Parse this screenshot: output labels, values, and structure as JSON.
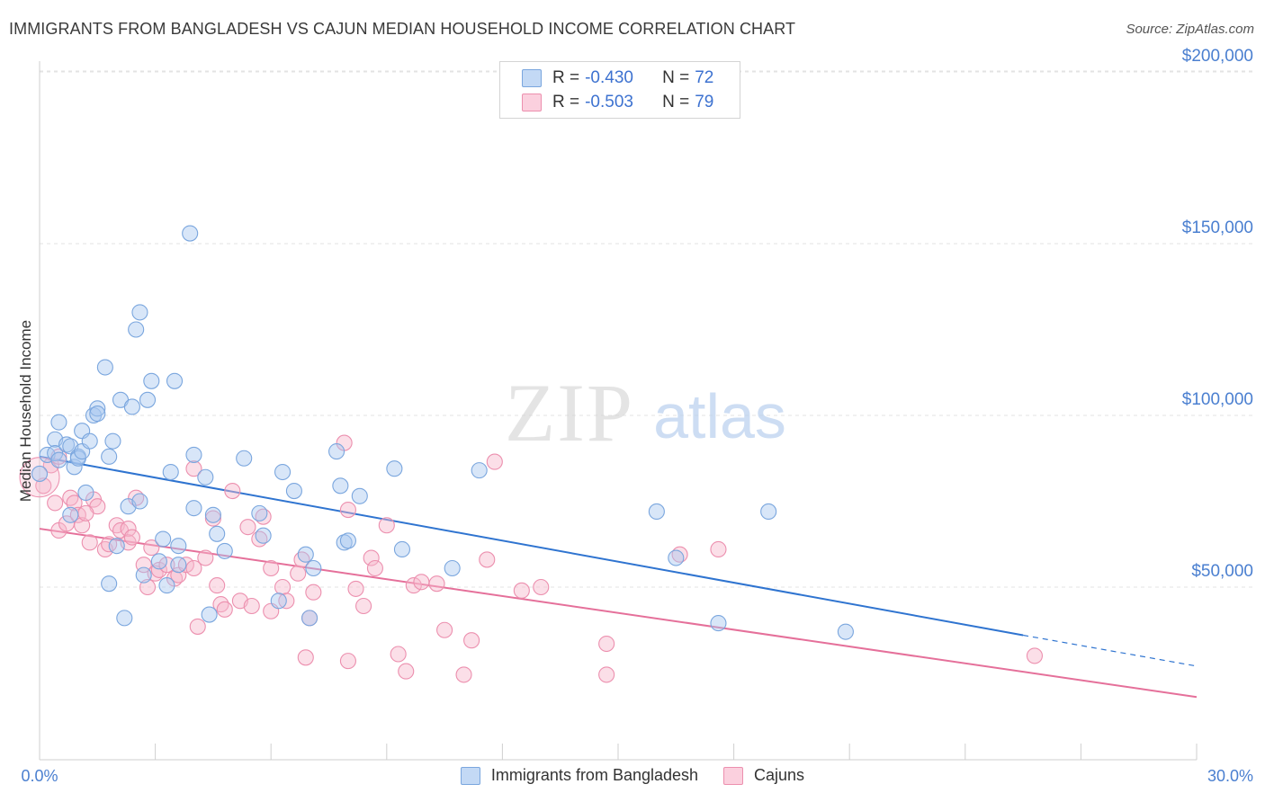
{
  "title": "IMMIGRANTS FROM BANGLADESH VS CAJUN MEDIAN HOUSEHOLD INCOME CORRELATION CHART",
  "source": "Source: ZipAtlas.com",
  "watermark": {
    "zip": "ZIP",
    "atlas": "atlas"
  },
  "colors": {
    "blue_fill": "#a9c8ef",
    "blue_stroke": "#7aa6de",
    "blue_line": "#2f74d0",
    "pink_fill": "#f6b9cd",
    "pink_stroke": "#ec8fae",
    "pink_line": "#e5709a",
    "accent_text": "#3d72d0",
    "grid": "#e3e3e3"
  },
  "legend": {
    "rows": [
      {
        "r_label": "R =",
        "r_value": "-0.430",
        "n_label": "N =",
        "n_value": "72"
      },
      {
        "r_label": "R =",
        "r_value": "-0.503",
        "n_label": "N =",
        "n_value": "79"
      }
    ]
  },
  "bottom_legend": [
    "Immigrants from Bangladesh",
    "Cajuns"
  ],
  "chart_data": {
    "type": "scatter",
    "title": "IMMIGRANTS FROM BANGLADESH VS CAJUN MEDIAN HOUSEHOLD INCOME CORRELATION CHART",
    "xlabel": "",
    "ylabel": "Median Household Income",
    "xlim": [
      0,
      30
    ],
    "ylim": [
      5000,
      210000
    ],
    "x_tick_labels": [
      "0.0%",
      "30.0%"
    ],
    "y_ticks": [
      50000,
      100000,
      150000,
      200000
    ],
    "y_tick_labels": [
      "$50,000",
      "$100,000",
      "$150,000",
      "$200,000"
    ],
    "grid": true,
    "series": [
      {
        "name": "Immigrants from Bangladesh",
        "r": -0.43,
        "n": 72,
        "trend": {
          "x0": 0.0,
          "y0": 88000,
          "x1": 25.5,
          "y1": 36000,
          "dash_x1": 30.0,
          "dash_y1": 27000
        },
        "points": [
          [
            0.0,
            83000
          ],
          [
            0.2,
            88500
          ],
          [
            0.4,
            93000
          ],
          [
            0.4,
            89000
          ],
          [
            0.5,
            98000
          ],
          [
            0.5,
            87000
          ],
          [
            0.7,
            91500
          ],
          [
            0.8,
            71000
          ],
          [
            0.8,
            91000
          ],
          [
            0.9,
            85000
          ],
          [
            1.0,
            88000
          ],
          [
            1.0,
            87500
          ],
          [
            1.1,
            89500
          ],
          [
            1.1,
            95500
          ],
          [
            1.2,
            77500
          ],
          [
            1.3,
            92500
          ],
          [
            1.4,
            100000
          ],
          [
            1.5,
            102000
          ],
          [
            1.5,
            100500
          ],
          [
            1.7,
            114000
          ],
          [
            1.8,
            88000
          ],
          [
            1.8,
            51000
          ],
          [
            1.9,
            92500
          ],
          [
            2.0,
            62000
          ],
          [
            2.1,
            104500
          ],
          [
            2.2,
            41000
          ],
          [
            2.3,
            73500
          ],
          [
            2.4,
            102500
          ],
          [
            2.5,
            125000
          ],
          [
            2.6,
            75000
          ],
          [
            2.6,
            130000
          ],
          [
            2.7,
            53500
          ],
          [
            2.8,
            104500
          ],
          [
            2.9,
            110000
          ],
          [
            3.1,
            57500
          ],
          [
            3.2,
            64000
          ],
          [
            3.3,
            50500
          ],
          [
            3.4,
            83500
          ],
          [
            3.5,
            110000
          ],
          [
            3.6,
            62000
          ],
          [
            3.9,
            153000
          ],
          [
            4.0,
            88500
          ],
          [
            4.0,
            73000
          ],
          [
            4.3,
            82000
          ],
          [
            4.4,
            42000
          ],
          [
            4.5,
            71000
          ],
          [
            4.6,
            65500
          ],
          [
            4.8,
            60500
          ],
          [
            5.3,
            87500
          ],
          [
            5.7,
            71500
          ],
          [
            5.8,
            65000
          ],
          [
            6.2,
            46000
          ],
          [
            6.3,
            83500
          ],
          [
            6.6,
            78000
          ],
          [
            6.9,
            59500
          ],
          [
            7.0,
            41000
          ],
          [
            7.1,
            55500
          ],
          [
            7.7,
            89500
          ],
          [
            7.8,
            79500
          ],
          [
            7.9,
            63000
          ],
          [
            8.0,
            63500
          ],
          [
            8.3,
            76500
          ],
          [
            9.2,
            84500
          ],
          [
            9.4,
            61000
          ],
          [
            10.7,
            55500
          ],
          [
            11.4,
            84000
          ],
          [
            16.0,
            72000
          ],
          [
            16.5,
            58500
          ],
          [
            17.6,
            39500
          ],
          [
            18.9,
            72000
          ],
          [
            20.9,
            37000
          ],
          [
            3.6,
            56500
          ]
        ]
      },
      {
        "name": "Cajuns",
        "r": -0.503,
        "n": 79,
        "trend": {
          "x0": 0.0,
          "y0": 67000,
          "x1": 30.0,
          "y1": 18000
        },
        "points": [
          [
            0.1,
            79500
          ],
          [
            0.3,
            85500
          ],
          [
            0.4,
            74500
          ],
          [
            0.5,
            66500
          ],
          [
            0.7,
            68500
          ],
          [
            0.8,
            76000
          ],
          [
            0.9,
            74500
          ],
          [
            1.0,
            71000
          ],
          [
            1.1,
            68000
          ],
          [
            1.3,
            63000
          ],
          [
            1.4,
            75500
          ],
          [
            1.5,
            73500
          ],
          [
            1.7,
            61000
          ],
          [
            1.8,
            62500
          ],
          [
            2.0,
            68000
          ],
          [
            2.1,
            66500
          ],
          [
            2.3,
            67000
          ],
          [
            2.3,
            63000
          ],
          [
            2.4,
            64500
          ],
          [
            2.5,
            76000
          ],
          [
            2.7,
            56500
          ],
          [
            2.8,
            50000
          ],
          [
            2.9,
            61500
          ],
          [
            3.0,
            54000
          ],
          [
            3.1,
            55000
          ],
          [
            3.3,
            56500
          ],
          [
            3.5,
            52500
          ],
          [
            3.6,
            53500
          ],
          [
            3.8,
            56500
          ],
          [
            4.0,
            55500
          ],
          [
            4.0,
            84500
          ],
          [
            4.1,
            38500
          ],
          [
            4.3,
            58500
          ],
          [
            4.5,
            70000
          ],
          [
            4.6,
            50500
          ],
          [
            4.7,
            45000
          ],
          [
            4.8,
            43500
          ],
          [
            5.0,
            78000
          ],
          [
            5.2,
            46000
          ],
          [
            5.4,
            67500
          ],
          [
            5.5,
            44500
          ],
          [
            5.7,
            64000
          ],
          [
            5.8,
            70500
          ],
          [
            6.0,
            55500
          ],
          [
            6.0,
            43000
          ],
          [
            6.3,
            50000
          ],
          [
            6.4,
            46000
          ],
          [
            6.7,
            54000
          ],
          [
            6.8,
            58000
          ],
          [
            6.9,
            29500
          ],
          [
            7.0,
            41000
          ],
          [
            7.1,
            48500
          ],
          [
            7.9,
            92000
          ],
          [
            8.0,
            28500
          ],
          [
            8.0,
            72500
          ],
          [
            8.2,
            49500
          ],
          [
            8.4,
            44500
          ],
          [
            8.6,
            58500
          ],
          [
            8.7,
            55500
          ],
          [
            9.0,
            68000
          ],
          [
            9.3,
            30500
          ],
          [
            9.5,
            25500
          ],
          [
            9.7,
            50500
          ],
          [
            9.9,
            51500
          ],
          [
            10.3,
            51000
          ],
          [
            10.5,
            37500
          ],
          [
            11.0,
            24500
          ],
          [
            11.2,
            34500
          ],
          [
            11.6,
            58000
          ],
          [
            11.8,
            86500
          ],
          [
            12.5,
            49000
          ],
          [
            13.0,
            50000
          ],
          [
            14.7,
            33500
          ],
          [
            14.7,
            24500
          ],
          [
            16.6,
            59500
          ],
          [
            17.6,
            61000
          ],
          [
            25.8,
            30000
          ],
          [
            0.5,
            88000
          ],
          [
            1.2,
            71500
          ]
        ]
      }
    ]
  }
}
